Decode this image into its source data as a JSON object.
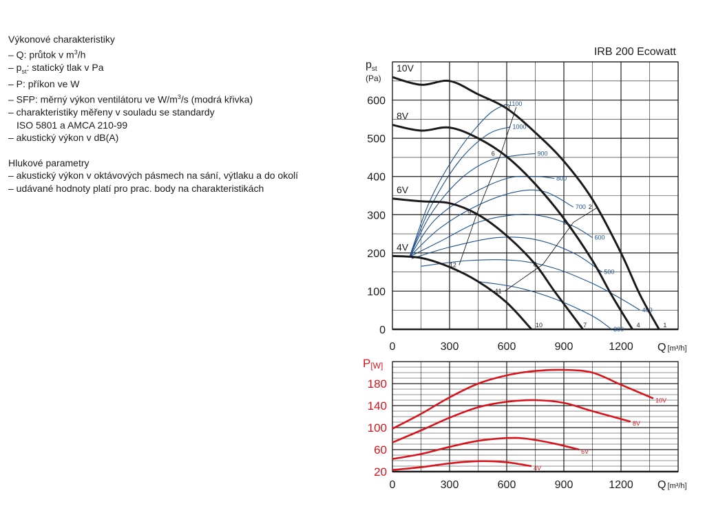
{
  "legend": {
    "title": "Výkonové charakteristiky",
    "items": [
      {
        "prefix": "– Q: průtok v m",
        "sup": "3",
        "suffix": "/h"
      },
      {
        "prefix": "– p",
        "sub": "st",
        "suffix": ": statický tlak v Pa"
      },
      {
        "prefix": "– P: příkon ve W"
      },
      {
        "prefix": "– SFP: měrný výkon ventilátoru ve W/m",
        "sup": "3",
        "suffix": "/s (modrá křivka)"
      },
      {
        "prefix": "– charakteristiky měřeny v souladu se standardy"
      },
      {
        "prefix": "   ISO 5801 a AMCA 210-99"
      },
      {
        "prefix": "– akustický výkon v dB(A)"
      }
    ],
    "noise_title": "Hlukové parametry",
    "noise_items": [
      "– akustický výkon v oktávových pásmech na sání, výtlaku a do okolí",
      "– udávané hodnoty platí pro prac. body na charakteristikách"
    ]
  },
  "colors": {
    "fan_curve": "#1a1a1a",
    "sfp_curve": "#1c4f8f",
    "power_curve": "#d7141b",
    "grid": "#1a1a1a"
  },
  "chart_data": [
    {
      "type": "line",
      "title": "IRB 200 Ecowatt",
      "ylabel_main": "p",
      "ylabel_sub": "st",
      "ylabel_unit": "(Pa)",
      "xlabel": "Q",
      "xlabel_unit": "[m³/h]",
      "xlim": [
        0,
        1500
      ],
      "ylim": [
        0,
        700
      ],
      "xticks": [
        0,
        300,
        600,
        900,
        1200
      ],
      "yticks": [
        0,
        100,
        200,
        300,
        400,
        500,
        600
      ],
      "grid": true,
      "series": [
        {
          "name": "10V",
          "points": [
            [
              0,
              660
            ],
            [
              150,
              640
            ],
            [
              300,
              650
            ],
            [
              450,
              615
            ],
            [
              600,
              578
            ],
            [
              750,
              515
            ],
            [
              900,
              440
            ],
            [
              1050,
              340
            ],
            [
              1200,
              200
            ],
            [
              1300,
              90
            ],
            [
              1400,
              0
            ]
          ]
        },
        {
          "name": "8V",
          "points": [
            [
              0,
              535
            ],
            [
              150,
              520
            ],
            [
              300,
              528
            ],
            [
              450,
              500
            ],
            [
              600,
              452
            ],
            [
              750,
              380
            ],
            [
              900,
              290
            ],
            [
              1050,
              180
            ],
            [
              1150,
              90
            ],
            [
              1260,
              0
            ]
          ]
        },
        {
          "name": "6V",
          "points": [
            [
              0,
              342
            ],
            [
              150,
              335
            ],
            [
              300,
              330
            ],
            [
              450,
              300
            ],
            [
              600,
              245
            ],
            [
              750,
              170
            ],
            [
              850,
              100
            ],
            [
              1000,
              0
            ]
          ]
        },
        {
          "name": "4V",
          "points": [
            [
              0,
              192
            ],
            [
              150,
              187
            ],
            [
              300,
              163
            ],
            [
              450,
              125
            ],
            [
              600,
              70
            ],
            [
              730,
              0
            ]
          ]
        }
      ],
      "sfp_curves": [
        {
          "label": "1100",
          "points": [
            [
              90,
              190
            ],
            [
              200,
              340
            ],
            [
              350,
              470
            ],
            [
              500,
              560
            ],
            [
              600,
              590
            ]
          ]
        },
        {
          "label": "1000",
          "points": [
            [
              90,
              190
            ],
            [
              200,
              320
            ],
            [
              350,
              440
            ],
            [
              500,
              510
            ],
            [
              620,
              530
            ]
          ]
        },
        {
          "label": "900",
          "points": [
            [
              90,
              190
            ],
            [
              200,
              300
            ],
            [
              350,
              390
            ],
            [
              500,
              440
            ],
            [
              650,
              455
            ],
            [
              750,
              460
            ]
          ]
        },
        {
          "label": "800",
          "points": [
            [
              90,
              190
            ],
            [
              220,
              285
            ],
            [
              400,
              350
            ],
            [
              600,
              395
            ],
            [
              750,
              400
            ],
            [
              850,
              395
            ]
          ]
        },
        {
          "label": "700",
          "points": [
            [
              90,
              190
            ],
            [
              250,
              265
            ],
            [
              450,
              325
            ],
            [
              650,
              360
            ],
            [
              800,
              360
            ],
            [
              950,
              320
            ]
          ]
        },
        {
          "label": "600",
          "points": [
            [
              90,
              190
            ],
            [
              250,
              230
            ],
            [
              450,
              280
            ],
            [
              650,
              300
            ],
            [
              800,
              295
            ],
            [
              950,
              270
            ],
            [
              1050,
              240
            ]
          ]
        },
        {
          "label": "500",
          "points": [
            [
              100,
              185
            ],
            [
              300,
              215
            ],
            [
              550,
              240
            ],
            [
              750,
              235
            ],
            [
              950,
              200
            ],
            [
              1100,
              150
            ]
          ]
        },
        {
          "label": "400",
          "points": [
            [
              150,
              165
            ],
            [
              400,
              180
            ],
            [
              650,
              180
            ],
            [
              850,
              160
            ],
            [
              1050,
              120
            ],
            [
              1200,
              80
            ],
            [
              1300,
              50
            ]
          ]
        },
        {
          "label": "300",
          "points": [
            [
              450,
              125
            ],
            [
              650,
              110
            ],
            [
              850,
              80
            ],
            [
              1050,
              35
            ],
            [
              1150,
              0
            ]
          ]
        }
      ],
      "operating_points": [
        {
          "label": "1",
          "x": 1400,
          "y": 0
        },
        {
          "label": "2",
          "x": 1080,
          "y": 320
        },
        {
          "label": "3",
          "x": 650,
          "y": 582
        },
        {
          "label": "4",
          "x": 1260,
          "y": 0
        },
        {
          "label": "5",
          "x": 950,
          "y": 280
        },
        {
          "label": "6",
          "x": 570,
          "y": 460
        },
        {
          "label": "7",
          "x": 980,
          "y": 0
        },
        {
          "label": "8",
          "x": 790,
          "y": 170
        },
        {
          "label": "9",
          "x": 445,
          "y": 305
        },
        {
          "label": "10",
          "x": 730,
          "y": 0
        },
        {
          "label": "11",
          "x": 590,
          "y": 100
        },
        {
          "label": "12",
          "x": 350,
          "y": 168
        }
      ],
      "system_lines": [
        {
          "points": [
            [
              350,
              168
            ],
            [
              445,
              305
            ],
            [
              570,
              460
            ],
            [
              650,
              582
            ]
          ]
        },
        {
          "points": [
            [
              590,
              100
            ],
            [
              790,
              170
            ],
            [
              950,
              280
            ],
            [
              1080,
              320
            ]
          ]
        }
      ]
    },
    {
      "type": "line",
      "ylabel_main": "P",
      "ylabel_unit": "[W]",
      "xlabel": "Q",
      "xlabel_unit": "[m³/h]",
      "xlim": [
        0,
        1500
      ],
      "ylim": [
        20,
        220
      ],
      "xticks": [
        0,
        300,
        600,
        900,
        1200
      ],
      "yticks": [
        20,
        60,
        100,
        140,
        180
      ],
      "grid": true,
      "series": [
        {
          "name": "10V",
          "points": [
            [
              0,
              98
            ],
            [
              150,
              125
            ],
            [
              300,
              155
            ],
            [
              450,
              180
            ],
            [
              600,
              195
            ],
            [
              750,
              203
            ],
            [
              900,
              205
            ],
            [
              1050,
              200
            ],
            [
              1200,
              178
            ],
            [
              1370,
              153
            ]
          ]
        },
        {
          "name": "8V",
          "points": [
            [
              0,
              73
            ],
            [
              150,
              95
            ],
            [
              300,
              118
            ],
            [
              450,
              137
            ],
            [
              600,
              147
            ],
            [
              750,
              150
            ],
            [
              900,
              145
            ],
            [
              1050,
              130
            ],
            [
              1250,
              111
            ]
          ]
        },
        {
          "name": "6V",
          "points": [
            [
              0,
              43
            ],
            [
              150,
              52
            ],
            [
              300,
              65
            ],
            [
              450,
              76
            ],
            [
              600,
              81
            ],
            [
              700,
              80
            ],
            [
              850,
              71
            ],
            [
              980,
              60
            ]
          ]
        },
        {
          "name": "4V",
          "points": [
            [
              0,
              23
            ],
            [
              150,
              28
            ],
            [
              300,
              35
            ],
            [
              450,
              39
            ],
            [
              600,
              37
            ],
            [
              730,
              30
            ]
          ]
        }
      ]
    }
  ]
}
